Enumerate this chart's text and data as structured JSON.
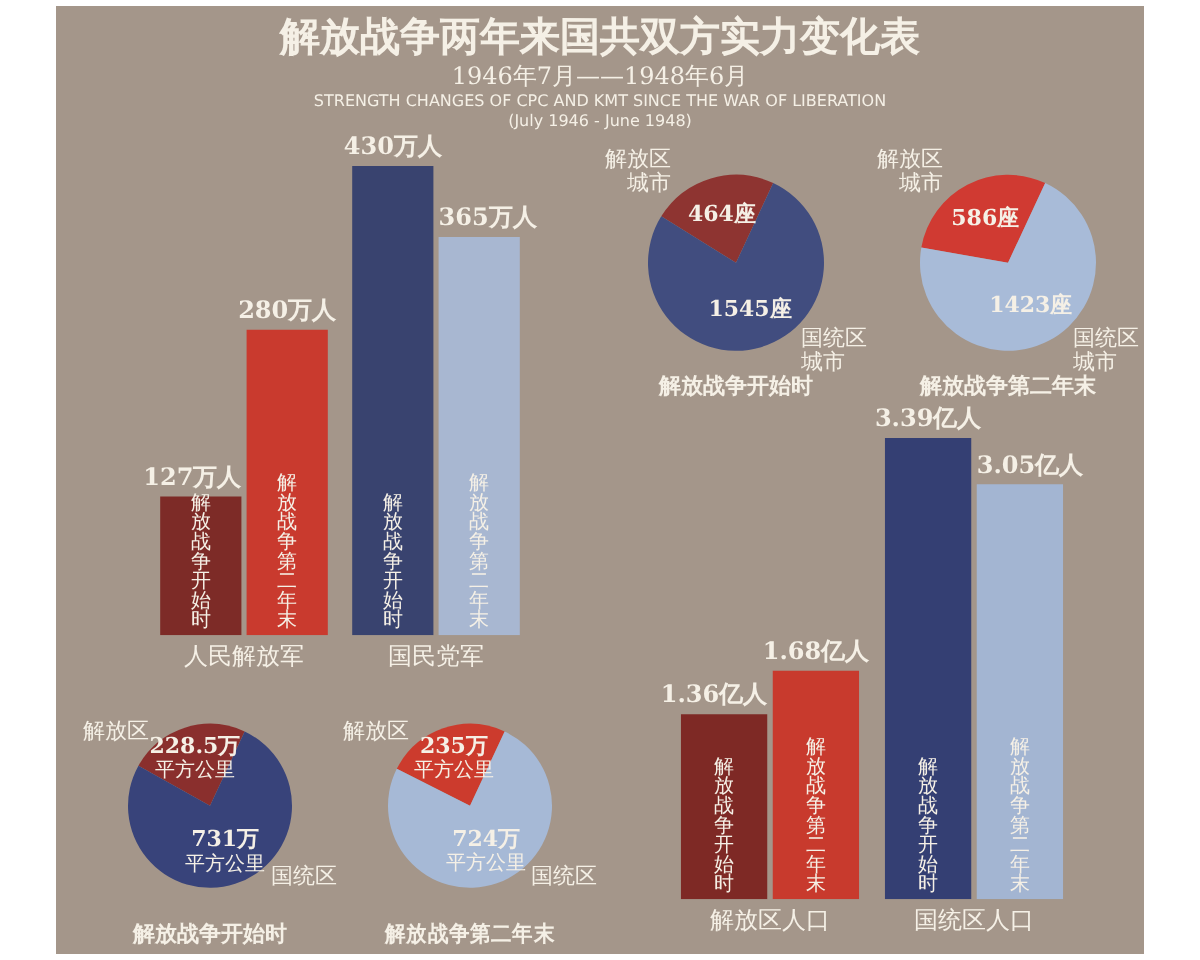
{
  "chart_data": [
    {
      "type": "other",
      "title": "解放战争两年来国共双方实力变化表",
      "subtitle": "1946年7月——1948年6月",
      "annotations": [
        "STRENGTH CHANGES OF CPC AND KMT SINCE THE WAR OF LIBERATION",
        "(July 1946 - June 1948)"
      ]
    },
    {
      "type": "bar",
      "categories": [
        "人民解放军",
        "国民党军"
      ],
      "series": [
        {
          "name": "解放战争开始时",
          "colors": [
            "#7d2b27",
            "#39436f"
          ],
          "values": [
            127,
            430
          ],
          "value_labels": [
            "127万人",
            "430万人"
          ]
        },
        {
          "name": "解放战争第二年末",
          "colors": [
            "#c93a2e",
            "#a8b7d1"
          ],
          "values": [
            280,
            365
          ],
          "value_labels": [
            "280万人",
            "365万人"
          ]
        }
      ],
      "tick_labels": "x"
    },
    {
      "type": "pie",
      "title": "解放战争开始时",
      "categories": [
        "解放区城市",
        "国统区城市"
      ],
      "values": [
        464,
        1545
      ],
      "colors": [
        "#8e3431",
        "#414d7f"
      ],
      "value_labels": [
        "464座",
        "1545座"
      ]
    },
    {
      "type": "pie",
      "title": "解放战争第二年末",
      "categories": [
        "解放区城市",
        "国统区城市"
      ],
      "values": [
        586,
        1423
      ],
      "colors": [
        "#d03a32",
        "#a8bbd8"
      ],
      "value_labels": [
        "586座",
        "1423座"
      ]
    },
    {
      "type": "pie",
      "title": "解放战争开始时",
      "categories": [
        "解放区",
        "国统区"
      ],
      "values": [
        228.5,
        731
      ],
      "colors": [
        "#8a2f2d",
        "#38437a"
      ],
      "value_labels": [
        "228.5万平方公里",
        "731万平方公里"
      ]
    },
    {
      "type": "pie",
      "title": "解放战争第二年末",
      "categories": [
        "解放区",
        "国统区"
      ],
      "values": [
        235,
        724
      ],
      "colors": [
        "#cc3b2d",
        "#a6b9d6"
      ],
      "value_labels": [
        "235万平方公里",
        "724万平方公里"
      ]
    },
    {
      "type": "bar",
      "categories": [
        "解放区人口",
        "国统区人口"
      ],
      "series": [
        {
          "name": "解放战争开始时",
          "colors": [
            "#7e2925",
            "#343f73"
          ],
          "values": [
            1.36,
            3.39
          ],
          "value_labels": [
            "1.36亿人",
            "3.39亿人"
          ]
        },
        {
          "name": "解放战争第二年末",
          "colors": [
            "#c83a2d",
            "#a3b5d2"
          ],
          "values": [
            1.68,
            3.05
          ],
          "value_labels": [
            "1.68亿人",
            "3.05亿人"
          ]
        }
      ],
      "tick_labels": "x"
    }
  ]
}
